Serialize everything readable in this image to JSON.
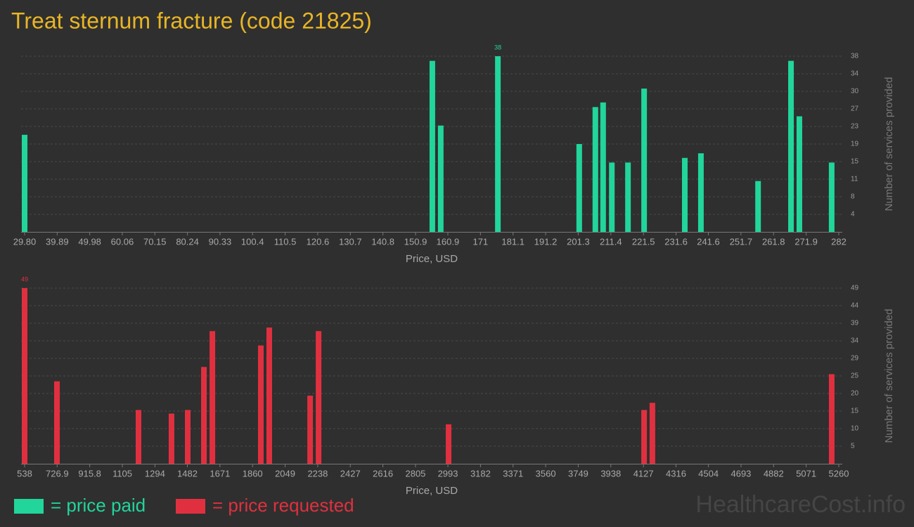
{
  "title": "Treat sternum fracture (code 21825)",
  "watermark": "HealthcareCost.info",
  "chart_data": [
    {
      "type": "bar",
      "x_label": "Price, USD",
      "y_label": "Number of services provided",
      "x": [
        29.8,
        156.1,
        158.7,
        176.4,
        201.6,
        206.6,
        209.0,
        211.7,
        216.7,
        221.7,
        234.3,
        239.3,
        257.0,
        267.2,
        269.8,
        279.8
      ],
      "series": [
        {
          "name": "= price paid",
          "color": "#21d59b",
          "values": [
            21,
            37,
            23,
            38,
            19,
            27,
            28,
            15,
            15,
            31,
            16,
            17,
            11,
            37,
            25,
            15
          ]
        }
      ],
      "xlim": [
        29.8,
        282
      ],
      "xticks": [
        {
          "value": 29.8,
          "label": "29.80"
        },
        39.89,
        49.98,
        60.06,
        70.15,
        80.24,
        90.33,
        100.4,
        110.5,
        120.6,
        130.7,
        140.8,
        150.9,
        160.9,
        171,
        181.1,
        191.2,
        201.3,
        211.4,
        221.5,
        231.6,
        241.6,
        251.7,
        261.8,
        271.9,
        282
      ],
      "ylim": [
        0,
        38
      ],
      "yticks": [
        {
          "value": 3.8,
          "label": "4"
        },
        {
          "value": 7.6,
          "label": "8"
        },
        {
          "value": 11.4,
          "label": "11"
        },
        {
          "value": 15.2,
          "label": "15"
        },
        19,
        {
          "value": 22.8,
          "label": "23"
        },
        {
          "value": 26.6,
          "label": "27"
        },
        {
          "value": 30.4,
          "label": "30"
        },
        {
          "value": 34.2,
          "label": "34"
        },
        38
      ],
      "grid": true
    },
    {
      "type": "bar",
      "x_label": "Price, USD",
      "y_label": "Number of services provided",
      "x": [
        538,
        725.6,
        1198.6,
        1390,
        1484,
        1578,
        1627,
        1908,
        1957,
        2194,
        2243,
        2997,
        4131,
        4179,
        5219
      ],
      "series": [
        {
          "name": "= price requested",
          "color": "#e0303f",
          "values": [
            49,
            23,
            15,
            14,
            15,
            27,
            37,
            33,
            38,
            19,
            37,
            11,
            15,
            17,
            25
          ]
        }
      ],
      "xlim": [
        538,
        5260
      ],
      "xticks": [
        538,
        726.9,
        915.8,
        1105,
        1294,
        1482,
        1671,
        1860,
        2049,
        2238,
        2427,
        2616,
        2805,
        2993,
        3182,
        3371,
        3560,
        3749,
        3938,
        4127,
        4316,
        4504,
        4693,
        4882,
        5071,
        5260
      ],
      "ylim": [
        0,
        49
      ],
      "yticks": [
        {
          "value": 4.9,
          "label": "5"
        },
        {
          "value": 9.8,
          "label": "10"
        },
        {
          "value": 14.7,
          "label": "15"
        },
        {
          "value": 19.6,
          "label": "20"
        },
        {
          "value": 24.5,
          "label": "25"
        },
        {
          "value": 29.4,
          "label": "29"
        },
        {
          "value": 34.3,
          "label": "34"
        },
        {
          "value": 39.2,
          "label": "39"
        },
        {
          "value": 44.1,
          "label": "44"
        },
        49
      ],
      "grid": true
    }
  ]
}
